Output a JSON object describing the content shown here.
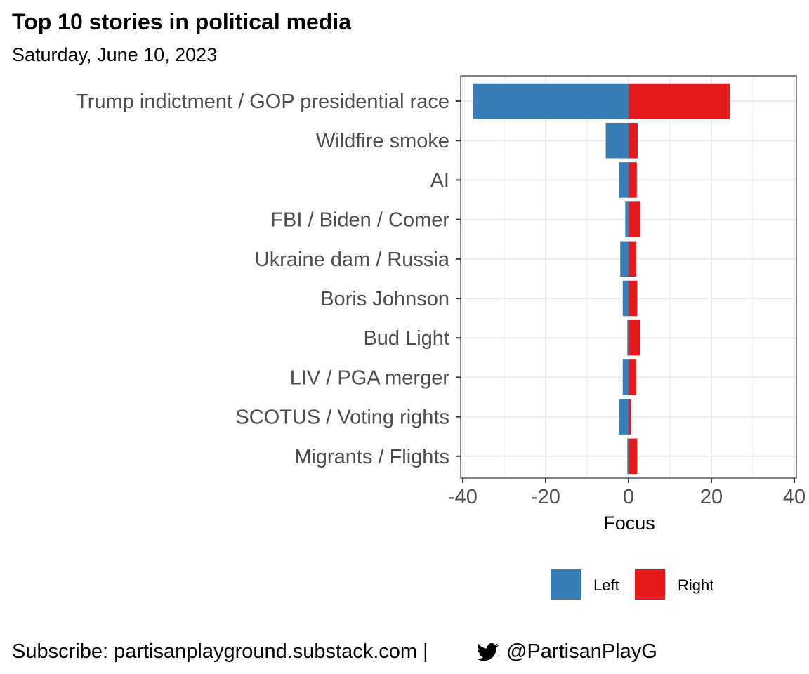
{
  "title": "Top 10 stories in political media",
  "subtitle": "Saturday, June 10, 2023",
  "footer": {
    "prefix": "Subscribe: partisanplayground.substack.com | ",
    "handle": "@PartisanPlayG",
    "icon": "twitter-bird-icon"
  },
  "colors": {
    "left": "#377EB8",
    "right": "#E41A1C",
    "grid": "#EBEBEB",
    "panel_border": "#333333",
    "tick_label": "#4D4D4D"
  },
  "chart_data": {
    "type": "bar",
    "orientation": "horizontal",
    "stacked": "diverging",
    "categories": [
      "Trump indictment / GOP presidential race",
      "Wildfire smoke",
      "AI",
      "FBI / Biden / Comer",
      "Ukraine dam / Russia",
      "Boris Johnson",
      "Bud Light",
      "LIV / PGA merger",
      "SCOTUS / Voting rights",
      "Migrants / Flights"
    ],
    "series": [
      {
        "name": "Left",
        "values": [
          -37.5,
          -5.5,
          -2.3,
          -0.8,
          -2.0,
          -1.4,
          -0.3,
          -1.4,
          -2.3,
          -0.3
        ]
      },
      {
        "name": "Right",
        "values": [
          24.4,
          2.2,
          2.0,
          2.9,
          1.9,
          2.1,
          2.8,
          1.9,
          0.6,
          2.1
        ]
      }
    ],
    "xlabel": "Focus",
    "ylabel": "",
    "xlim": [
      -40.5,
      40.5
    ],
    "x_ticks": [
      "-40",
      "-20",
      "0",
      "20",
      "40"
    ],
    "x_tick_values": [
      -40,
      -20,
      0,
      20,
      40
    ],
    "grid": true,
    "legend": {
      "position": "bottom",
      "entries": [
        "Left",
        "Right"
      ]
    }
  }
}
